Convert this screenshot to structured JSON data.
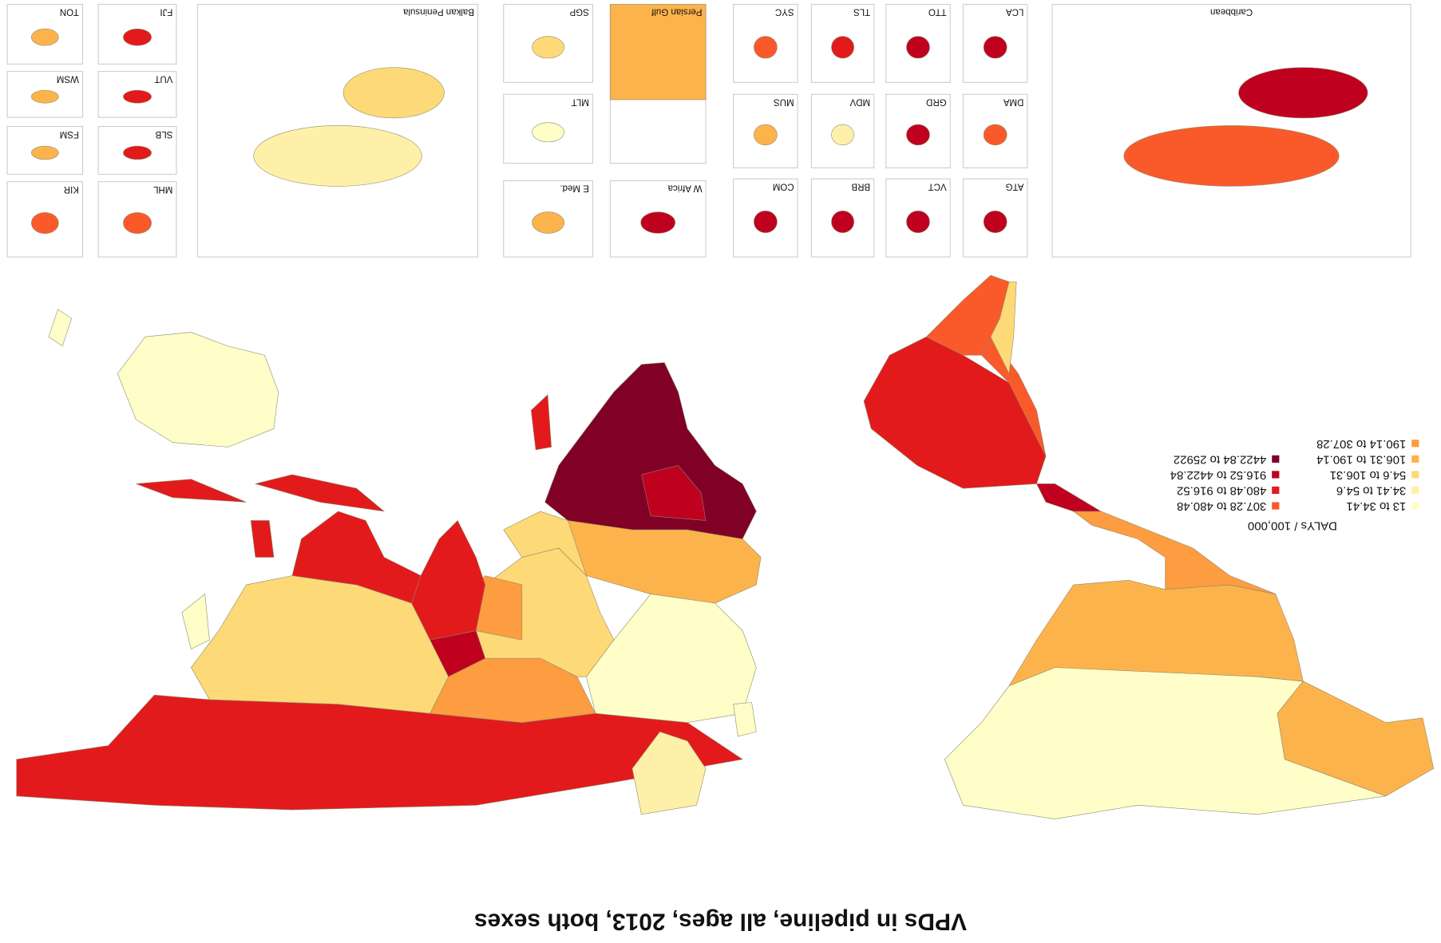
{
  "title": "VPDs in pipeline, all ages, 2013, both sexes",
  "legend": {
    "title": "DALYs / 100,000",
    "items": [
      {
        "label": "13 to 34.41",
        "color": "#fffdc8"
      },
      {
        "label": "34.41 to 54.6",
        "color": "#fef0a8"
      },
      {
        "label": "54.6 to 106.31",
        "color": "#fed977"
      },
      {
        "label": "106.31 to 190.14",
        "color": "#fdb34c"
      },
      {
        "label": "190.14 to 307.28",
        "color": "#fd9c40"
      },
      {
        "label": "307.28 to 480.48",
        "color": "#fa5a2a"
      },
      {
        "label": "480.48 to 916.52",
        "color": "#e31a1c"
      },
      {
        "label": "916.52 to 4422.84",
        "color": "#c0001f"
      },
      {
        "label": "4422.84 to 25922",
        "color": "#800026"
      }
    ]
  },
  "insets": [
    {
      "label": "Caribbean"
    },
    {
      "label": "ATG"
    },
    {
      "label": "VCT"
    },
    {
      "label": "BRB"
    },
    {
      "label": "COM"
    },
    {
      "label": "DMA"
    },
    {
      "label": "GRD"
    },
    {
      "label": "MDV"
    },
    {
      "label": "MUS"
    },
    {
      "label": "LCA"
    },
    {
      "label": "TTO"
    },
    {
      "label": "TLS"
    },
    {
      "label": "SYC"
    },
    {
      "label": "W Africa"
    },
    {
      "label": "Persian Gulf"
    },
    {
      "label": "E Med."
    },
    {
      "label": "MLT"
    },
    {
      "label": "SGP"
    },
    {
      "label": "Balkan Peninsula"
    },
    {
      "label": "MHL"
    },
    {
      "label": "KIR"
    },
    {
      "label": "SLB"
    },
    {
      "label": "FSM"
    },
    {
      "label": "VUT"
    },
    {
      "label": "WSM"
    },
    {
      "label": "FJI"
    },
    {
      "label": "TON"
    }
  ]
}
